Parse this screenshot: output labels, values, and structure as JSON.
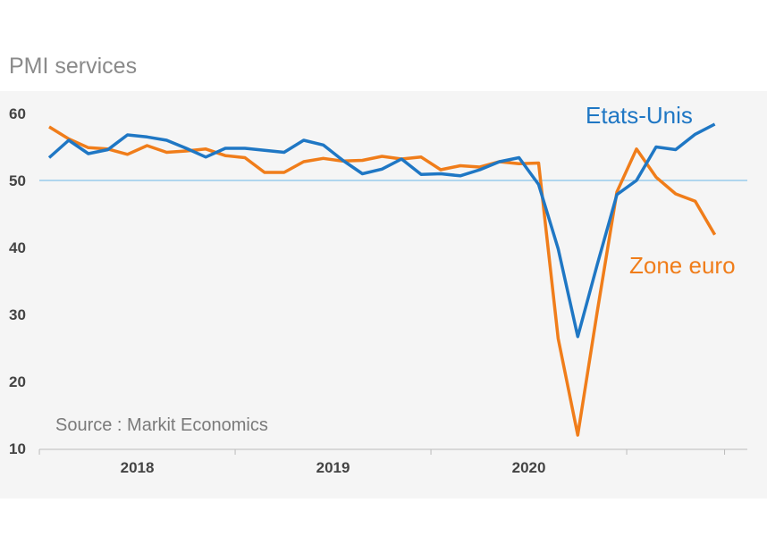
{
  "chart_data": {
    "type": "line",
    "title": "PMI services",
    "source": "Source : Markit Economics",
    "ylim": [
      10,
      60
    ],
    "yticks": [
      10,
      20,
      30,
      40,
      50,
      60
    ],
    "xlim": [
      0,
      30
    ],
    "xticks": [
      {
        "label": "2018",
        "pos": 4.5
      },
      {
        "label": "2019",
        "pos": 14.5
      },
      {
        "label": "2020",
        "pos": 24.5
      }
    ],
    "reference_line": 50,
    "series": [
      {
        "name": "Etats-Unis",
        "color": "#1f77c4",
        "values": [
          53.4,
          56.0,
          54.0,
          54.6,
          56.8,
          56.5,
          56.0,
          54.8,
          53.5,
          54.8,
          54.8,
          54.5,
          54.2,
          56.0,
          55.3,
          53.0,
          51.0,
          51.7,
          53.2,
          50.9,
          51.0,
          50.7,
          51.6,
          52.8,
          53.4,
          49.4,
          39.8,
          26.7,
          37.5,
          47.9,
          50.0,
          55.0,
          54.6,
          56.9,
          58.4
        ]
      },
      {
        "name": "Zone euro",
        "color": "#f07d1a",
        "values": [
          58.0,
          56.2,
          54.9,
          54.7,
          53.9,
          55.2,
          54.2,
          54.4,
          54.7,
          53.7,
          53.4,
          51.2,
          51.2,
          52.8,
          53.3,
          52.9,
          53.0,
          53.6,
          53.2,
          53.5,
          51.6,
          52.2,
          52.0,
          52.8,
          52.5,
          52.6,
          26.4,
          12.0,
          30.5,
          48.3,
          54.7,
          50.5,
          48.0,
          46.9,
          41.9
        ]
      }
    ]
  }
}
